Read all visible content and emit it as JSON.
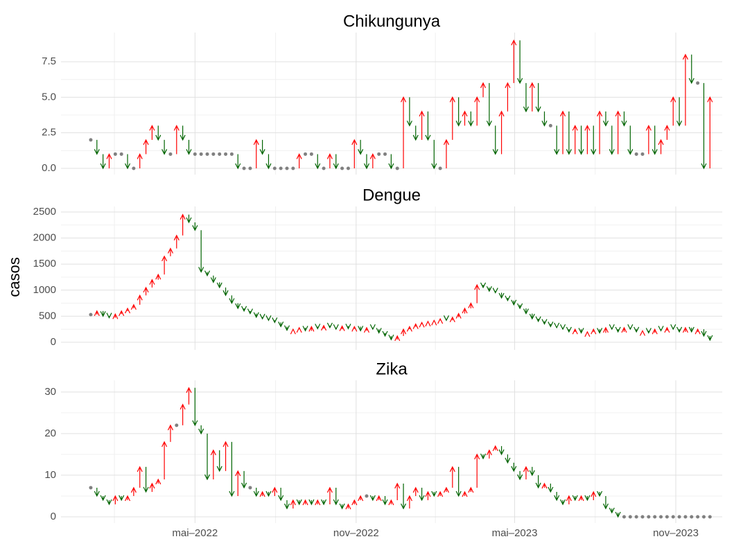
{
  "chart_data": {
    "type": "arrow",
    "ylabel": "casos",
    "up_color": "#ff0000",
    "down_color": "#006400",
    "same_color": "#808080",
    "grid": true,
    "xlim": [
      "2021-11-29",
      "2023-12-24"
    ],
    "xticks": [
      {
        "value": "2022-05-01",
        "label": "mai–2022"
      },
      {
        "value": "2022-11-01",
        "label": "nov–2022"
      },
      {
        "value": "2023-05-01",
        "label": "mai–2023"
      },
      {
        "value": "2023-11-01",
        "label": "nov–2023"
      }
    ],
    "x": [
      "2022-01-02",
      "2022-01-09",
      "2022-01-16",
      "2022-01-23",
      "2022-01-30",
      "2022-02-06",
      "2022-02-13",
      "2022-02-20",
      "2022-02-27",
      "2022-03-06",
      "2022-03-13",
      "2022-03-20",
      "2022-03-27",
      "2022-04-03",
      "2022-04-10",
      "2022-04-17",
      "2022-04-24",
      "2022-05-01",
      "2022-05-08",
      "2022-05-15",
      "2022-05-22",
      "2022-05-29",
      "2022-06-05",
      "2022-06-12",
      "2022-06-19",
      "2022-06-26",
      "2022-07-03",
      "2022-07-10",
      "2022-07-17",
      "2022-07-24",
      "2022-07-31",
      "2022-08-07",
      "2022-08-14",
      "2022-08-21",
      "2022-08-28",
      "2022-09-04",
      "2022-09-11",
      "2022-09-18",
      "2022-09-25",
      "2022-10-02",
      "2022-10-09",
      "2022-10-16",
      "2022-10-23",
      "2022-10-30",
      "2022-11-06",
      "2022-11-13",
      "2022-11-20",
      "2022-11-27",
      "2022-12-04",
      "2022-12-11",
      "2022-12-18",
      "2022-12-25",
      "2023-01-01",
      "2023-01-08",
      "2023-01-15",
      "2023-01-22",
      "2023-01-29",
      "2023-02-05",
      "2023-02-12",
      "2023-02-19",
      "2023-02-26",
      "2023-03-05",
      "2023-03-12",
      "2023-03-19",
      "2023-03-26",
      "2023-04-02",
      "2023-04-09",
      "2023-04-16",
      "2023-04-23",
      "2023-04-30",
      "2023-05-07",
      "2023-05-14",
      "2023-05-21",
      "2023-05-28",
      "2023-06-04",
      "2023-06-11",
      "2023-06-18",
      "2023-06-25",
      "2023-07-02",
      "2023-07-09",
      "2023-07-16",
      "2023-07-23",
      "2023-07-30",
      "2023-08-06",
      "2023-08-13",
      "2023-08-20",
      "2023-08-27",
      "2023-09-03",
      "2023-09-10",
      "2023-09-17",
      "2023-09-24",
      "2023-10-01",
      "2023-10-08",
      "2023-10-15",
      "2023-10-22",
      "2023-10-29",
      "2023-11-05",
      "2023-11-12",
      "2023-11-19",
      "2023-11-26",
      "2023-12-03",
      "2023-12-10"
    ],
    "panels": [
      {
        "title": "Chikungunya",
        "ylim": [
          -0.44,
          9.55
        ],
        "yticks": [
          {
            "value": 0,
            "label": "0.0"
          },
          {
            "value": 2.5,
            "label": "2.5"
          },
          {
            "value": 5,
            "label": "5.0"
          },
          {
            "value": 7.5,
            "label": "7.5"
          }
        ],
        "values": [
          2,
          1,
          0,
          1,
          1,
          1,
          0,
          0,
          1,
          2,
          3,
          2,
          1,
          1,
          3,
          2,
          1,
          1,
          1,
          1,
          1,
          1,
          1,
          1,
          0,
          0,
          0,
          2,
          1,
          0,
          0,
          0,
          0,
          0,
          1,
          1,
          1,
          0,
          0,
          1,
          0,
          0,
          0,
          2,
          1,
          0,
          1,
          1,
          1,
          0,
          0,
          5,
          3,
          2,
          4,
          2,
          0,
          0,
          2,
          5,
          3,
          4,
          3,
          5,
          6,
          3,
          1,
          4,
          6,
          9,
          6,
          4,
          6,
          4,
          3,
          3,
          1,
          4,
          1,
          3,
          1,
          3,
          1,
          4,
          3,
          1,
          4,
          3,
          1,
          1,
          1,
          3,
          1,
          2,
          3,
          5,
          3,
          8,
          6,
          6,
          0,
          5
        ]
      },
      {
        "title": "Dengue",
        "ylim": [
          -146,
          2606
        ],
        "yticks": [
          0,
          500,
          1000,
          1500,
          2000,
          2500
        ],
        "values": [
          530,
          600,
          500,
          470,
          540,
          600,
          650,
          720,
          900,
          1050,
          1200,
          1300,
          1650,
          1800,
          2050,
          2450,
          2300,
          2150,
          1350,
          1280,
          1150,
          1050,
          900,
          750,
          650,
          600,
          550,
          480,
          450,
          420,
          380,
          300,
          230,
          250,
          280,
          220,
          300,
          260,
          320,
          280,
          250,
          310,
          260,
          300,
          220,
          280,
          250,
          180,
          120,
          50,
          120,
          250,
          300,
          350,
          380,
          400,
          420,
          450,
          420,
          480,
          550,
          650,
          750,
          1100,
          1050,
          980,
          950,
          850,
          800,
          720,
          650,
          550,
          450,
          400,
          350,
          300,
          280,
          250,
          200,
          250,
          180,
          200,
          250,
          180,
          280,
          250,
          200,
          280,
          250,
          200,
          220,
          180,
          250,
          220,
          280,
          250,
          200,
          280,
          200,
          250,
          120,
          40
        ]
      },
      {
        "title": "Zika",
        "ylim": [
          -1.5,
          32.8
        ],
        "yticks": [
          0,
          10,
          20,
          30
        ],
        "values": [
          7,
          5,
          4,
          3,
          5,
          4,
          5,
          7,
          12,
          6,
          8,
          9,
          18,
          22,
          22,
          27,
          31,
          22,
          20,
          9,
          16,
          11,
          18,
          5,
          11,
          7,
          7,
          5,
          6,
          5,
          7,
          4,
          2,
          4,
          3,
          4,
          3,
          4,
          3,
          7,
          3,
          2,
          3,
          4,
          5,
          5,
          4,
          5,
          3,
          4,
          8,
          2,
          5,
          7,
          4,
          6,
          5,
          6,
          7,
          12,
          5,
          6,
          7,
          15,
          14,
          16,
          17,
          15,
          13,
          11,
          9,
          12,
          10,
          7,
          8,
          6,
          4,
          3,
          5,
          4,
          5,
          4,
          6,
          5,
          2,
          1,
          0,
          0,
          0,
          0,
          0,
          0,
          0,
          0,
          0,
          0,
          0,
          0,
          0,
          0,
          0,
          0
        ]
      }
    ]
  }
}
